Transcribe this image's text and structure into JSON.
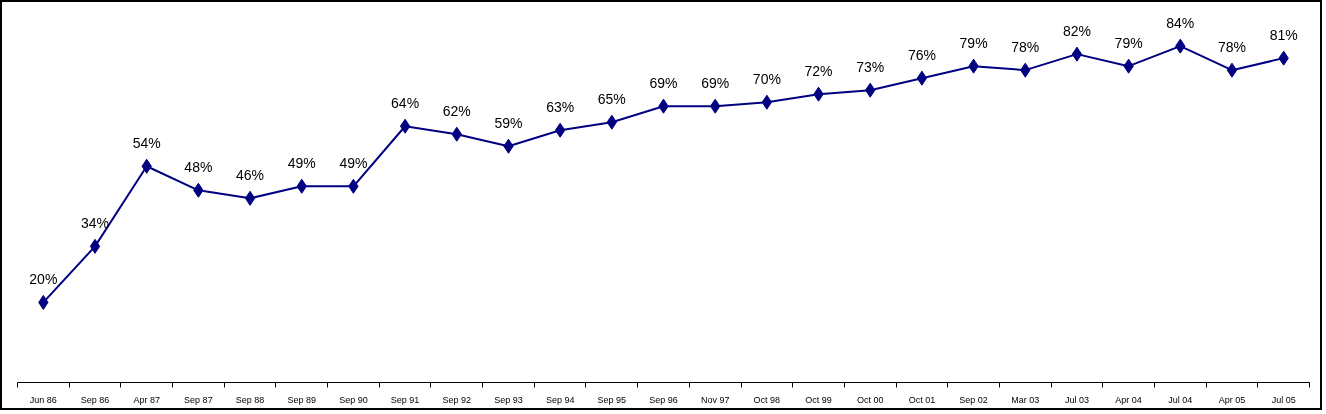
{
  "chart_data": {
    "type": "line",
    "categories": [
      "Jun 86",
      "Sep 86",
      "Apr 87",
      "Sep 87",
      "Sep 88",
      "Sep 89",
      "Sep 90",
      "Sep 91",
      "Sep 92",
      "Sep 93",
      "Sep 94",
      "Sep 95",
      "Sep 96",
      "Nov 97",
      "Oct 98",
      "Oct 99",
      "Oct 00",
      "Oct 01",
      "Sep 02",
      "Mar 03",
      "Jul 03",
      "Apr 04",
      "Jul 04",
      "Apr 05",
      "Jul 05"
    ],
    "series": [
      {
        "color": "#000080",
        "values": [
          20,
          34,
          54,
          48,
          46,
          49,
          49,
          64,
          62,
          59,
          63,
          65,
          69,
          69,
          70,
          72,
          73,
          76,
          79,
          78,
          82,
          79,
          84,
          78,
          81
        ],
        "value_labels": [
          "20%",
          "34%",
          "54%",
          "48%",
          "46%",
          "49%",
          "49%",
          "64%",
          "62%",
          "59%",
          "63%",
          "65%",
          "69%",
          "69%",
          "70%",
          "72%",
          "73%",
          "76%",
          "79%",
          "78%",
          "82%",
          "79%",
          "84%",
          "78%",
          "81%"
        ]
      }
    ],
    "marker": "diamond",
    "line_style": "solid",
    "tick_labels": "x"
  }
}
